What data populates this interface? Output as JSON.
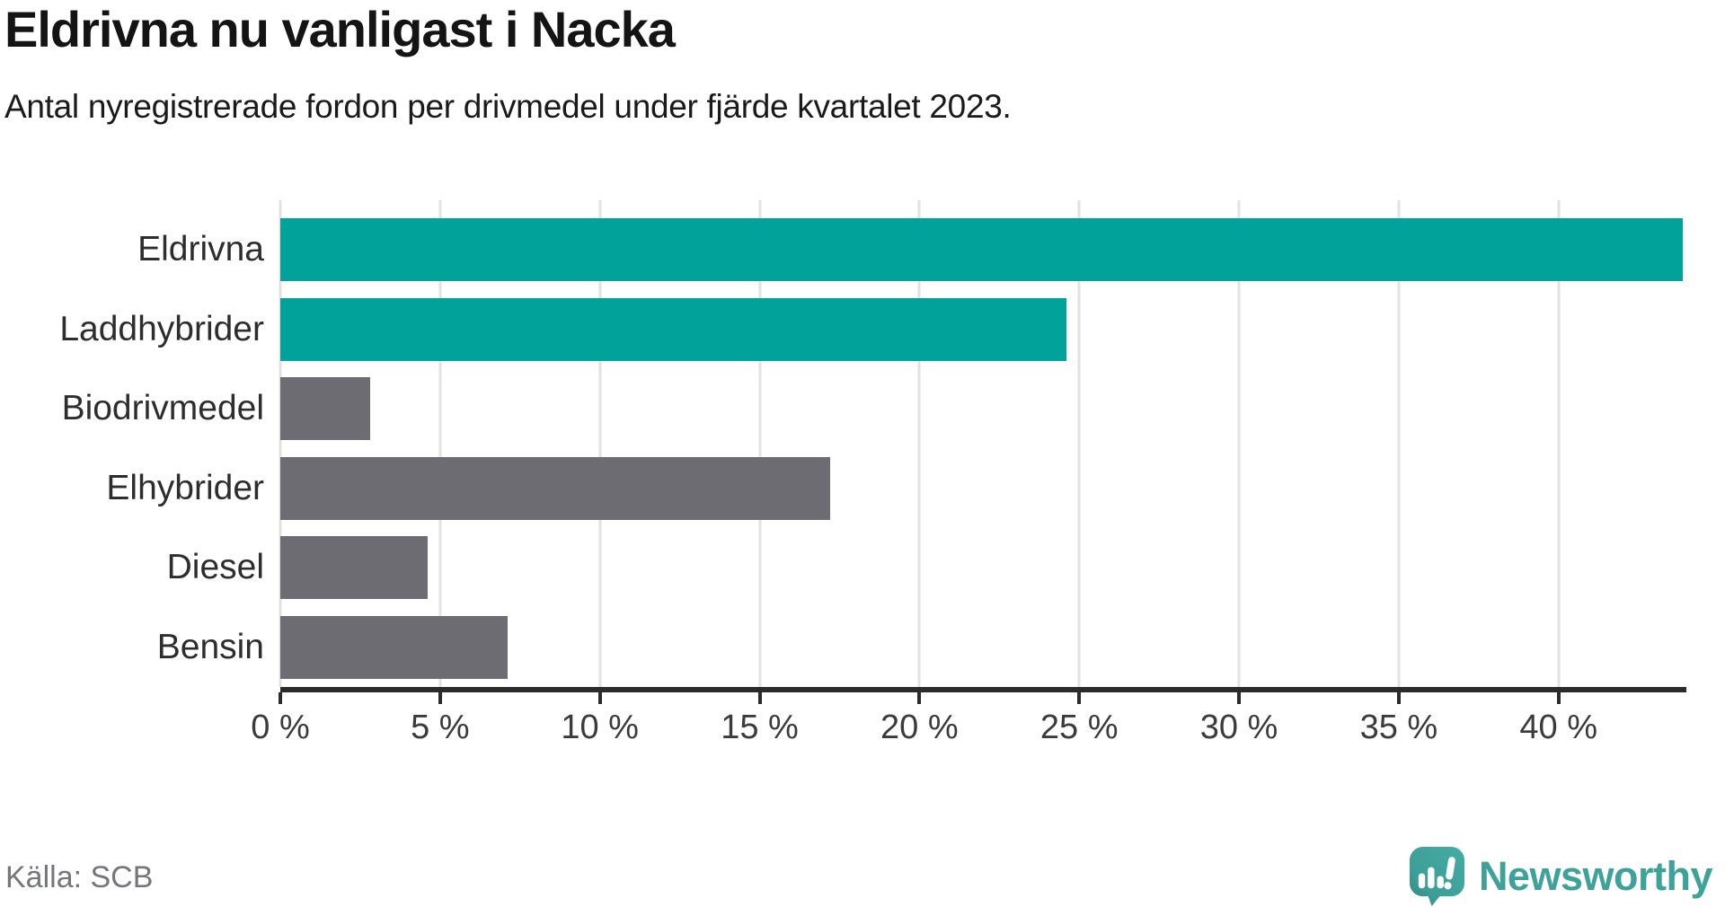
{
  "header": {
    "title": "Eldrivna nu vanligast i Nacka",
    "subtitle": "Antal nyregistrerade fordon per drivmedel under fjärde kvartalet 2023."
  },
  "chart_data": {
    "type": "bar",
    "orientation": "horizontal",
    "title": "Eldrivna nu vanligast i Nacka",
    "subtitle": "Antal nyregistrerade fordon per drivmedel under fjärde kvartalet 2023.",
    "categories": [
      "Eldrivna",
      "Laddhybrider",
      "Biodrivmedel",
      "Elhybrider",
      "Diesel",
      "Bensin"
    ],
    "values": [
      43.9,
      24.6,
      2.8,
      17.2,
      4.6,
      7.1
    ],
    "unit": "%",
    "bar_colors": [
      "#00a29a",
      "#00a29a",
      "#6c6c72",
      "#6c6c72",
      "#6c6c72",
      "#6c6c72"
    ],
    "xlim": [
      0,
      44
    ],
    "x_tick_values": [
      0,
      5,
      10,
      15,
      20,
      25,
      30,
      35,
      40
    ],
    "x_tick_labels": [
      "0 %",
      "5 %",
      "10 %",
      "15 %",
      "20 %",
      "25 %",
      "30 %",
      "35 %",
      "40 %"
    ],
    "grid": true,
    "gridline_color": "#e2e2e2",
    "axis_color": "#2b2b2b",
    "legend": "none"
  },
  "footer": {
    "source": "Källa: SCB",
    "brand": "Newsworthy"
  },
  "colors": {
    "teal": "#00a29a",
    "grey": "#6c6c72",
    "brand": "#3fa29a",
    "source_text": "#75757d"
  },
  "icons": {
    "logo_icon": "newsworthy-speech-bubble-chart-icon"
  }
}
